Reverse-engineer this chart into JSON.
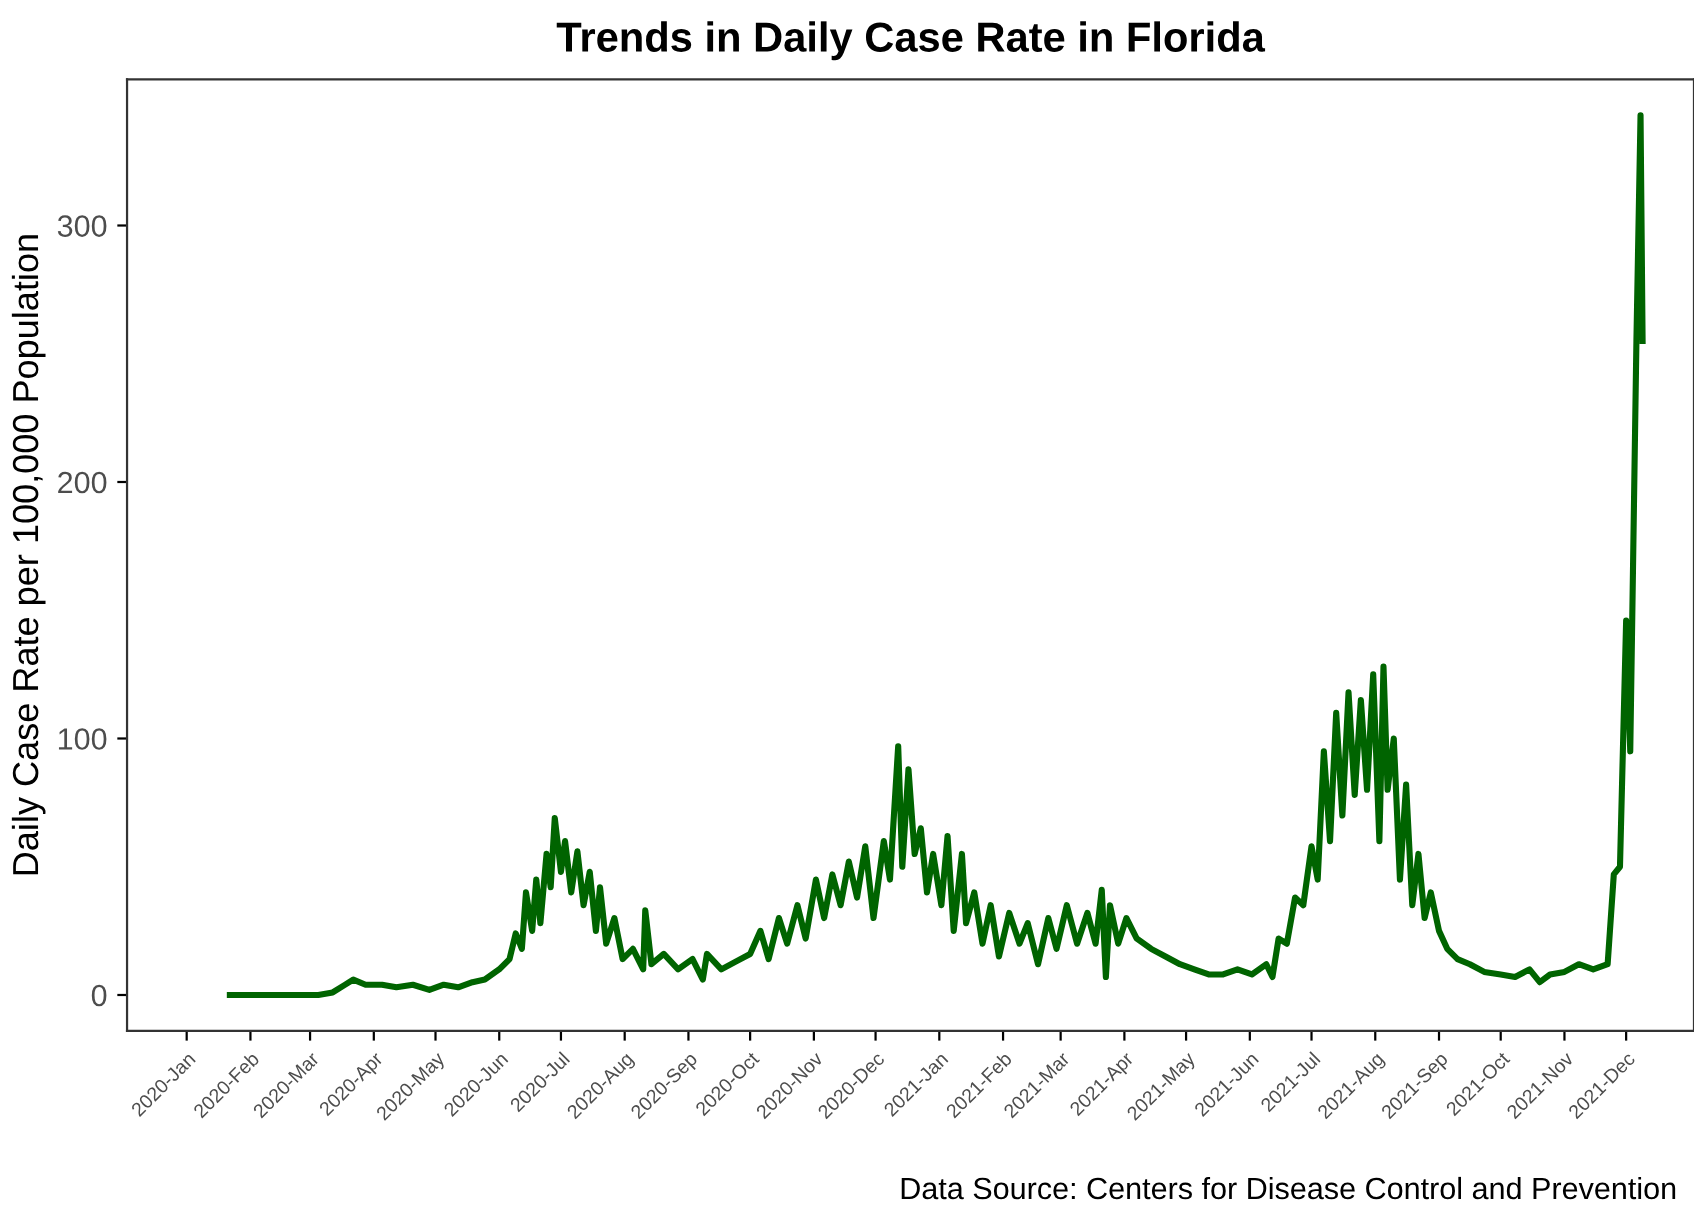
{
  "chart_data": {
    "type": "line",
    "title": "Trends in Daily Case Rate in Florida",
    "ylabel": "Daily Case Rate per 100,000 Population",
    "annotations": [
      "Data Source: Centers for Disease Control and Prevention"
    ],
    "xlim": [
      "2019-12-03",
      "2022-01-03"
    ],
    "ylim": [
      -14,
      357
    ],
    "yticks": [
      0,
      100,
      200,
      300
    ],
    "grid": false,
    "legend": false,
    "marker": "none",
    "line_style": "solid",
    "xticks": [
      {
        "value": "2020-01-01",
        "label": "2020-Jan"
      },
      {
        "value": "2020-02-01",
        "label": "2020-Feb"
      },
      {
        "value": "2020-03-01",
        "label": "2020-Mar"
      },
      {
        "value": "2020-04-01",
        "label": "2020-Apr"
      },
      {
        "value": "2020-05-01",
        "label": "2020-May"
      },
      {
        "value": "2020-06-01",
        "label": "2020-Jun"
      },
      {
        "value": "2020-07-01",
        "label": "2020-Jul"
      },
      {
        "value": "2020-08-01",
        "label": "2020-Aug"
      },
      {
        "value": "2020-09-01",
        "label": "2020-Sep"
      },
      {
        "value": "2020-10-01",
        "label": "2020-Oct"
      },
      {
        "value": "2020-11-01",
        "label": "2020-Nov"
      },
      {
        "value": "2020-12-01",
        "label": "2020-Dec"
      },
      {
        "value": "2021-01-01",
        "label": "2021-Jan"
      },
      {
        "value": "2021-02-01",
        "label": "2021-Feb"
      },
      {
        "value": "2021-03-01",
        "label": "2021-Mar"
      },
      {
        "value": "2021-04-01",
        "label": "2021-Apr"
      },
      {
        "value": "2021-05-01",
        "label": "2021-May"
      },
      {
        "value": "2021-06-01",
        "label": "2021-Jun"
      },
      {
        "value": "2021-07-01",
        "label": "2021-Jul"
      },
      {
        "value": "2021-08-01",
        "label": "2021-Aug"
      },
      {
        "value": "2021-09-01",
        "label": "2021-Sep"
      },
      {
        "value": "2021-10-01",
        "label": "2021-Oct"
      },
      {
        "value": "2021-11-01",
        "label": "2021-Nov"
      },
      {
        "value": "2021-12-01",
        "label": "2021-Dec"
      }
    ],
    "series": [
      {
        "color": "#006400",
        "x": [
          "2020-01-22",
          "2020-02-15",
          "2020-03-05",
          "2020-03-12",
          "2020-03-18",
          "2020-03-22",
          "2020-03-28",
          "2020-04-05",
          "2020-04-12",
          "2020-04-20",
          "2020-04-28",
          "2020-05-05",
          "2020-05-12",
          "2020-05-19",
          "2020-05-25",
          "2020-06-01",
          "2020-06-06",
          "2020-06-09",
          "2020-06-12",
          "2020-06-14",
          "2020-06-17",
          "2020-06-19",
          "2020-06-21",
          "2020-06-24",
          "2020-06-26",
          "2020-06-28",
          "2020-07-01",
          "2020-07-03",
          "2020-07-06",
          "2020-07-09",
          "2020-07-12",
          "2020-07-15",
          "2020-07-18",
          "2020-07-20",
          "2020-07-23",
          "2020-07-27",
          "2020-07-31",
          "2020-08-05",
          "2020-08-10",
          "2020-08-11",
          "2020-08-14",
          "2020-08-20",
          "2020-08-27",
          "2020-09-03",
          "2020-09-08",
          "2020-09-10",
          "2020-09-17",
          "2020-09-24",
          "2020-10-01",
          "2020-10-06",
          "2020-10-10",
          "2020-10-15",
          "2020-10-19",
          "2020-10-24",
          "2020-10-28",
          "2020-11-02",
          "2020-11-06",
          "2020-11-10",
          "2020-11-14",
          "2020-11-18",
          "2020-11-22",
          "2020-11-26",
          "2020-11-30",
          "2020-12-05",
          "2020-12-08",
          "2020-12-12",
          "2020-12-14",
          "2020-12-17",
          "2020-12-20",
          "2020-12-23",
          "2020-12-26",
          "2020-12-29",
          "2021-01-02",
          "2021-01-05",
          "2021-01-08",
          "2021-01-12",
          "2021-01-14",
          "2021-01-18",
          "2021-01-22",
          "2021-01-26",
          "2021-01-30",
          "2021-02-04",
          "2021-02-09",
          "2021-02-13",
          "2021-02-18",
          "2021-02-23",
          "2021-02-27",
          "2021-03-04",
          "2021-03-09",
          "2021-03-14",
          "2021-03-18",
          "2021-03-21",
          "2021-03-23",
          "2021-03-25",
          "2021-03-29",
          "2021-04-02",
          "2021-04-07",
          "2021-04-14",
          "2021-04-21",
          "2021-04-28",
          "2021-05-05",
          "2021-05-12",
          "2021-05-19",
          "2021-05-26",
          "2021-06-02",
          "2021-06-09",
          "2021-06-12",
          "2021-06-15",
          "2021-06-19",
          "2021-06-23",
          "2021-06-27",
          "2021-07-01",
          "2021-07-04",
          "2021-07-07",
          "2021-07-10",
          "2021-07-13",
          "2021-07-16",
          "2021-07-19",
          "2021-07-22",
          "2021-07-25",
          "2021-07-28",
          "2021-07-31",
          "2021-08-03",
          "2021-08-05",
          "2021-08-07",
          "2021-08-10",
          "2021-08-13",
          "2021-08-16",
          "2021-08-19",
          "2021-08-22",
          "2021-08-25",
          "2021-08-28",
          "2021-09-01",
          "2021-09-05",
          "2021-09-10",
          "2021-09-16",
          "2021-09-23",
          "2021-10-01",
          "2021-10-08",
          "2021-10-15",
          "2021-10-20",
          "2021-10-25",
          "2021-11-01",
          "2021-11-08",
          "2021-11-15",
          "2021-11-22",
          "2021-11-25",
          "2021-11-28",
          "2021-12-01",
          "2021-12-03",
          "2021-12-06",
          "2021-12-08",
          "2021-12-09"
        ],
        "values": [
          0,
          0,
          0,
          1,
          4,
          6,
          4,
          4,
          3,
          4,
          2,
          4,
          3,
          5,
          6,
          10,
          14,
          24,
          18,
          40,
          25,
          45,
          28,
          55,
          42,
          69,
          48,
          60,
          40,
          56,
          35,
          48,
          25,
          42,
          20,
          30,
          14,
          18,
          10,
          33,
          12,
          16,
          10,
          14,
          6,
          16,
          10,
          13,
          16,
          25,
          14,
          30,
          20,
          35,
          22,
          45,
          30,
          47,
          35,
          52,
          38,
          58,
          30,
          60,
          45,
          97,
          50,
          88,
          55,
          65,
          40,
          55,
          35,
          62,
          25,
          55,
          28,
          40,
          20,
          35,
          15,
          32,
          20,
          28,
          12,
          30,
          18,
          35,
          20,
          32,
          20,
          41,
          7,
          35,
          20,
          30,
          22,
          18,
          15,
          12,
          10,
          8,
          8,
          10,
          8,
          12,
          7,
          22,
          20,
          38,
          35,
          58,
          45,
          95,
          60,
          110,
          70,
          118,
          78,
          115,
          80,
          125,
          60,
          128,
          80,
          100,
          45,
          82,
          35,
          55,
          30,
          40,
          25,
          18,
          14,
          12,
          9,
          8,
          7,
          10,
          5,
          8,
          9,
          12,
          10,
          12,
          47,
          50,
          146,
          95,
          255,
          343,
          255
        ]
      }
    ]
  }
}
